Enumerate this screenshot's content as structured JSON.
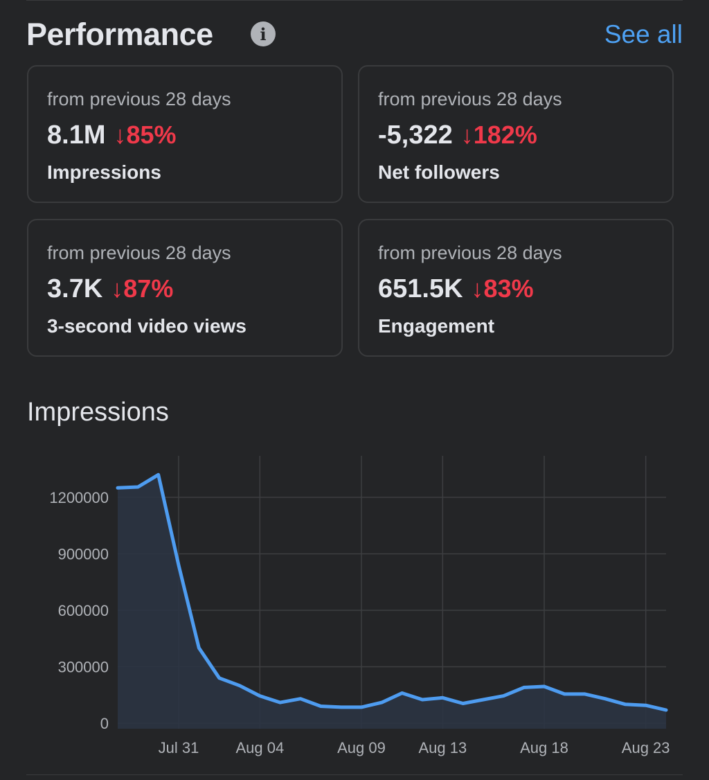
{
  "header": {
    "title": "Performance",
    "info_icon": "i",
    "see_all": "See all"
  },
  "cards": [
    {
      "subtitle": "from previous 28 days",
      "value": "8.1M",
      "change": "↓85%",
      "label": "Impressions"
    },
    {
      "subtitle": "from previous 28 days",
      "value": "-5,322",
      "change": "↓182%",
      "label": "Net followers"
    },
    {
      "subtitle": "from previous 28 days",
      "value": "3.7K",
      "change": "↓87%",
      "label": "3-second video views"
    },
    {
      "subtitle": "from previous 28 days",
      "value": "651.5K",
      "change": "↓83%",
      "label": "Engagement"
    }
  ],
  "colors": {
    "accent": "#4ea1f3",
    "negative": "#f0394a",
    "line": "#4e9cf0",
    "area": "#2b3442"
  },
  "chart_data": {
    "type": "area",
    "title": "Impressions",
    "x": [
      "Jul 28",
      "Jul 29",
      "Jul 30",
      "Jul 31",
      "Aug 01",
      "Aug 02",
      "Aug 03",
      "Aug 04",
      "Aug 05",
      "Aug 06",
      "Aug 07",
      "Aug 08",
      "Aug 09",
      "Aug 10",
      "Aug 11",
      "Aug 12",
      "Aug 13",
      "Aug 14",
      "Aug 15",
      "Aug 16",
      "Aug 17",
      "Aug 18",
      "Aug 19",
      "Aug 20",
      "Aug 21",
      "Aug 22",
      "Aug 23",
      "Aug 24"
    ],
    "values": [
      1250000,
      1255000,
      1320000,
      840000,
      400000,
      240000,
      200000,
      145000,
      110000,
      130000,
      90000,
      85000,
      85000,
      110000,
      160000,
      125000,
      135000,
      105000,
      125000,
      145000,
      190000,
      195000,
      155000,
      155000,
      130000,
      100000,
      95000,
      70000
    ],
    "x_ticks": [
      "Jul 31",
      "Aug 04",
      "Aug 09",
      "Aug 13",
      "Aug 18",
      "Aug 23"
    ],
    "y_ticks": [
      0,
      300000,
      600000,
      900000,
      1200000
    ],
    "ylim": [
      0,
      1450000
    ],
    "grid": true,
    "legend": "none"
  }
}
